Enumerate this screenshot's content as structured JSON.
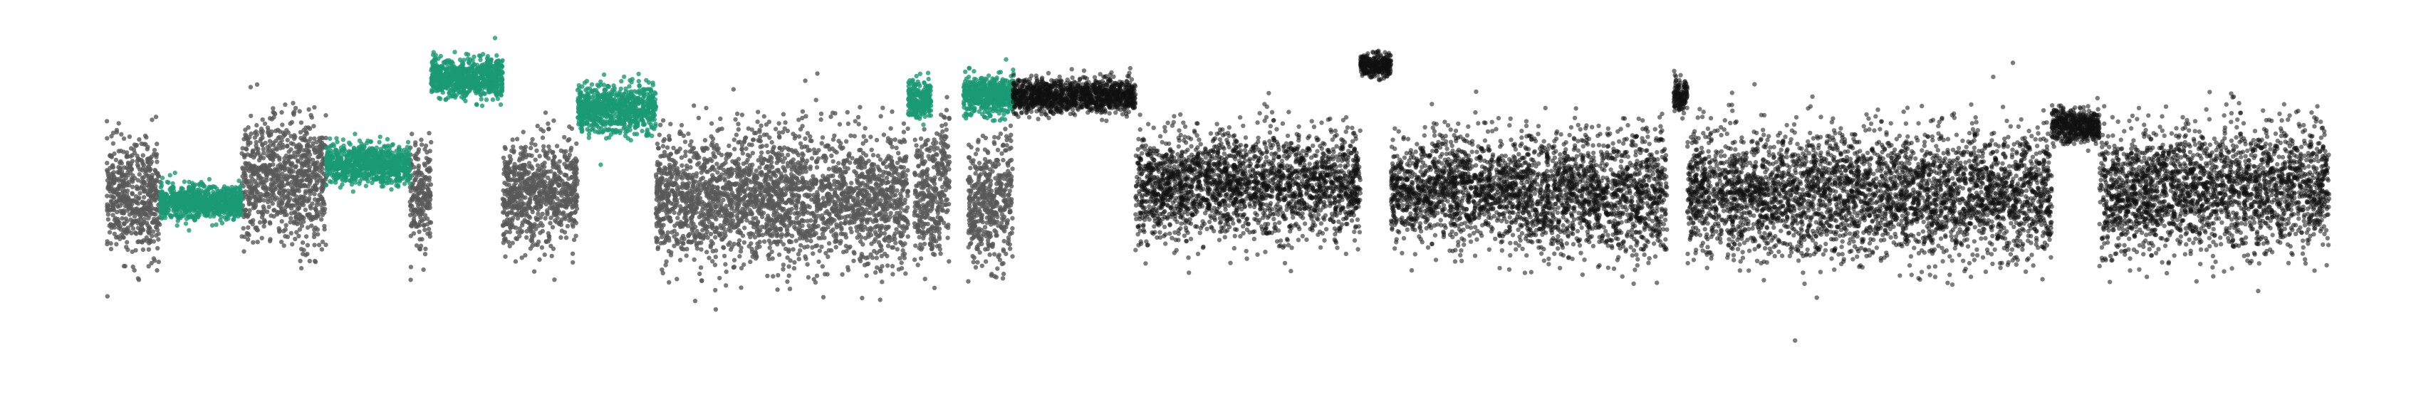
{
  "chart_data": {
    "type": "scatter",
    "title": "",
    "xlabel": "",
    "ylabel": "",
    "xlim": [
      0,
      3262
    ],
    "ylim": [
      -4.6,
      4.3
    ],
    "grid": false,
    "legend": "none",
    "colors": {
      "gray": "#595959",
      "green": "#1a9a74",
      "black": "#111111"
    },
    "series": [
      {
        "color": "gray",
        "segments": [
          {
            "x": [
              0,
              78
            ],
            "center": 0.0,
            "spread": 1.2
          },
          {
            "x": [
              198,
              322
            ],
            "center": 0.4,
            "spread": 1.3
          },
          {
            "x": [
              445,
              476
            ],
            "center": 0.1,
            "spread": 1.1
          },
          {
            "x": [
              581,
              691
            ],
            "center": 0.1,
            "spread": 1.1
          },
          {
            "x": [
              806,
              1176
            ],
            "center": 0.0,
            "spread": 1.4
          },
          {
            "x": [
              1185,
              1224
            ],
            "center": 0.0,
            "spread": 1.3
          },
          {
            "x": [
              1224,
              1237
            ],
            "center": 0.6,
            "spread": 1.3
          },
          {
            "x": [
              1264,
              1330
            ],
            "center": -0.1,
            "spread": 1.3
          }
        ]
      },
      {
        "color": "green",
        "segments": [
          {
            "x": [
              78,
              198
            ],
            "center": -0.1,
            "spread": 0.35
          },
          {
            "x": [
              322,
              445
            ],
            "center": 0.8,
            "spread": 0.4
          },
          {
            "x": [
              476,
              581
            ],
            "center": 2.8,
            "spread": 0.4
          },
          {
            "x": [
              691,
              806
            ],
            "center": 2.1,
            "spread": 0.5
          },
          {
            "x": [
              1176,
              1210
            ],
            "center": 2.3,
            "spread": 0.4
          },
          {
            "x": [
              1257,
              1332
            ],
            "center": 2.4,
            "spread": 0.4
          }
        ]
      },
      {
        "color": "black",
        "segments": [
          {
            "x": [
              1330,
              1510
            ],
            "center": 2.4,
            "spread": 0.35
          },
          {
            "x": [
              1510,
              1840
            ],
            "center": 0.3,
            "spread": 1.1
          },
          {
            "x": [
              1840,
              1885
            ],
            "center": 3.1,
            "spread": 0.25
          },
          {
            "x": [
              1885,
              2080
            ],
            "center": 0.2,
            "spread": 1.1
          },
          {
            "x": [
              2080,
              2290
            ],
            "center": 0.1,
            "spread": 1.3
          },
          {
            "x": [
              2300,
              2320
            ],
            "center": 2.4,
            "spread": 0.35
          },
          {
            "x": [
              2320,
              2855
            ],
            "center": 0.1,
            "spread": 1.3
          },
          {
            "x": [
              2855,
              2925
            ],
            "center": 1.7,
            "spread": 0.35
          },
          {
            "x": [
              2925,
              3262
            ],
            "center": 0.2,
            "spread": 1.3
          }
        ]
      }
    ]
  }
}
